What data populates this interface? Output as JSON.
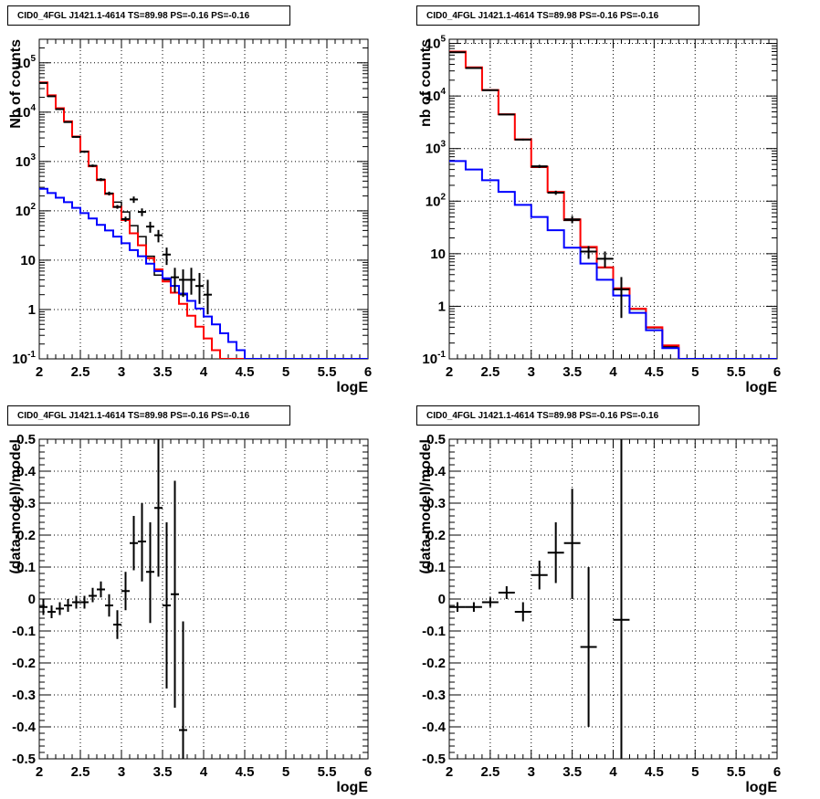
{
  "chart_data": [
    {
      "type": "line",
      "title": "CID0_4FGL J1421.1-4614 TS=89.98 PS=-0.16 PS=-0.16",
      "xlabel": "logE",
      "ylabel": "Nb of counts",
      "xlim": [
        2,
        6
      ],
      "ylim": [
        0.1,
        300000
      ],
      "yscale": "log",
      "grid": true,
      "xticks": [
        "2",
        "2.5",
        "3",
        "3.5",
        "4",
        "4.5",
        "5",
        "5.5",
        "6"
      ],
      "yticks": [
        "10^-1",
        "1",
        "10",
        "10^2",
        "10^3",
        "10^4",
        "10^5"
      ],
      "bin_edges": [
        2.0,
        2.1,
        2.2,
        2.3,
        2.4,
        2.5,
        2.6,
        2.7,
        2.8,
        2.9,
        3.0,
        3.1,
        3.2,
        3.3,
        3.4,
        3.5,
        3.6,
        3.7,
        3.8,
        3.9,
        4.0,
        4.1,
        4.2,
        4.3,
        4.4,
        4.5,
        4.6,
        4.7,
        4.8,
        4.9,
        5.0,
        5.1,
        5.2,
        5.3,
        5.4,
        5.5,
        5.6,
        5.7,
        5.8,
        5.9,
        6.0
      ],
      "series": [
        {
          "color": "#ff0000",
          "values": [
            40000,
            22000,
            12000,
            6500,
            3200,
            1600,
            800,
            420,
            220,
            120,
            65,
            35,
            20,
            11,
            6.5,
            3.7,
            2.2,
            1.3,
            0.75,
            0.45,
            0.26,
            0.15,
            0.1,
            0.1,
            0.1,
            0.1,
            0.1,
            0.1,
            0.1,
            0.1,
            0.1,
            0.1,
            0.1,
            0.1,
            0.1,
            0.1,
            0.1,
            0.1,
            0.1,
            0.1
          ]
        },
        {
          "color": "#0000ff",
          "values": [
            280,
            230,
            185,
            150,
            115,
            90,
            70,
            52,
            40,
            30,
            22,
            16,
            12,
            8.5,
            6.0,
            4.3,
            3.0,
            2.1,
            1.5,
            1.05,
            0.72,
            0.5,
            0.33,
            0.22,
            0.15,
            0.1,
            0.1,
            0.1,
            0.1,
            0.1,
            0.1,
            0.1,
            0.1,
            0.1,
            0.1,
            0.1,
            0.1,
            0.1,
            0.1,
            0.1
          ]
        },
        {
          "color": "#000000",
          "values": [
            39000,
            21000,
            11500,
            6300,
            3150,
            1580,
            820,
            430,
            225,
            150,
            95,
            50,
            30,
            12,
            5,
            4,
            3,
            2
          ]
        }
      ],
      "points": {
        "x": [
          2.05,
          2.15,
          2.25,
          2.35,
          2.45,
          2.55,
          2.65,
          2.75,
          2.85,
          2.95,
          3.05,
          3.15,
          3.25,
          3.35,
          3.45,
          3.55,
          3.65,
          3.75,
          3.85,
          3.95,
          4.05
        ],
        "y": [
          39000,
          21000,
          11500,
          6300,
          3150,
          1580,
          820,
          430,
          225,
          120,
          68,
          170,
          95,
          48,
          32,
          13,
          4.5,
          4,
          4,
          3,
          2
        ],
        "ylow": [
          38600,
          20700,
          11300,
          6150,
          3040,
          1500,
          770,
          400,
          205,
          110,
          60,
          145,
          78,
          36,
          23,
          8,
          2.2,
          1.8,
          2,
          1.3,
          0.8
        ],
        "yhigh": [
          39400,
          21300,
          11700,
          6450,
          3260,
          1660,
          870,
          460,
          245,
          131,
          76,
          195,
          112,
          60,
          41,
          18,
          7,
          6.5,
          7,
          5.5,
          4
        ]
      }
    },
    {
      "type": "line",
      "title": "CID0_4FGL J1421.1-4614 TS=89.98 PS=-0.16 PS=-0.16",
      "xlabel": "logE",
      "ylabel": "nb of counts",
      "xlim": [
        2,
        6
      ],
      "ylim": [
        0.1,
        120000
      ],
      "yscale": "log",
      "grid": true,
      "xticks": [
        "2",
        "2.5",
        "3",
        "3.5",
        "4",
        "4.5",
        "5",
        "5.5",
        "6"
      ],
      "yticks": [
        "10^-1",
        "1",
        "10",
        "10^2",
        "10^3",
        "10^4",
        "10^5"
      ],
      "bin_edges": [
        2.0,
        2.2,
        2.4,
        2.6,
        2.8,
        3.0,
        3.2,
        3.4,
        3.6,
        3.8,
        4.0,
        4.2,
        4.4,
        4.6,
        4.8,
        5.0,
        5.2,
        5.4,
        5.6,
        5.8,
        6.0
      ],
      "series": [
        {
          "color": "#ff0000",
          "values": [
            70000,
            35000,
            13000,
            4500,
            1500,
            450,
            150,
            45,
            13.5,
            5.5,
            2.2,
            0.9,
            0.4,
            0.18,
            0.1,
            0.1,
            0.1,
            0.1,
            0.1,
            0.1
          ]
        },
        {
          "color": "#0000ff",
          "values": [
            580,
            400,
            250,
            150,
            85,
            50,
            28,
            13,
            6.5,
            3.2,
            1.6,
            0.75,
            0.35,
            0.16,
            0.1,
            0.1,
            0.1,
            0.1,
            0.1,
            0.1
          ]
        },
        {
          "color": "#000000",
          "values": [
            68000,
            34000,
            12900,
            4450,
            1480,
            440,
            148,
            43,
            13,
            5.4,
            2.1,
            0.88,
            0.39,
            0.17,
            0.1,
            0.1,
            0.1,
            0.1,
            0.1,
            0.1
          ]
        }
      ],
      "points": {
        "x": [
          2.1,
          2.3,
          2.5,
          2.7,
          2.9,
          3.1,
          3.3,
          3.5,
          3.7,
          3.9,
          4.1
        ],
        "y": [
          68000,
          34000,
          12900,
          4450,
          1480,
          460,
          145,
          45,
          11,
          8,
          2.1
        ],
        "ylow": [
          67400,
          33600,
          12700,
          4330,
          1420,
          430,
          132,
          38,
          8,
          5.5,
          0.6
        ],
        "yhigh": [
          68600,
          34400,
          13100,
          4570,
          1540,
          490,
          158,
          52,
          14,
          11,
          3.6
        ]
      }
    },
    {
      "type": "scatter",
      "title": "CID0_4FGL J1421.1-4614 TS=89.98 PS=-0.16 PS=-0.16",
      "xlabel": "logE",
      "ylabel": "(data-model)/model",
      "xlim": [
        2,
        6
      ],
      "ylim": [
        -0.5,
        0.5
      ],
      "grid": true,
      "xticks": [
        "2",
        "2.5",
        "3",
        "3.5",
        "4",
        "4.5",
        "5",
        "5.5",
        "6"
      ],
      "yticks": [
        "-0.5",
        "-0.4",
        "-0.3",
        "-0.2",
        "-0.1",
        "0",
        "0.1",
        "0.2",
        "0.3",
        "0.4",
        "0.5"
      ],
      "x": [
        2.05,
        2.15,
        2.25,
        2.35,
        2.45,
        2.55,
        2.65,
        2.75,
        2.85,
        2.95,
        3.05,
        3.15,
        3.25,
        3.35,
        3.45,
        3.55,
        3.65,
        3.75
      ],
      "xerr": 0.05,
      "y": [
        -0.025,
        -0.04,
        -0.03,
        -0.02,
        -0.01,
        -0.01,
        0.01,
        0.03,
        -0.02,
        -0.08,
        0.025,
        0.175,
        0.18,
        0.085,
        0.285,
        -0.02,
        0.015,
        -0.41
      ],
      "ylow": [
        -0.05,
        -0.06,
        -0.05,
        -0.04,
        -0.03,
        -0.03,
        -0.01,
        0.005,
        -0.055,
        -0.125,
        -0.035,
        0.09,
        0.055,
        -0.075,
        0.07,
        -0.28,
        -0.34,
        -0.5
      ],
      "yhigh": [
        0.0,
        -0.02,
        -0.01,
        0.0,
        0.01,
        0.01,
        0.035,
        0.055,
        0.015,
        -0.035,
        0.085,
        0.26,
        0.3,
        0.24,
        0.5,
        0.24,
        0.37,
        -0.07
      ]
    },
    {
      "type": "scatter",
      "title": "CID0_4FGL J1421.1-4614 TS=89.98 PS=-0.16 PS=-0.16",
      "xlabel": "logE",
      "ylabel": "(data-model)/model",
      "xlim": [
        2,
        6
      ],
      "ylim": [
        -0.5,
        0.5
      ],
      "grid": true,
      "xticks": [
        "2",
        "2.5",
        "3",
        "3.5",
        "4",
        "4.5",
        "5",
        "5.5",
        "6"
      ],
      "yticks": [
        "-0.5",
        "-0.4",
        "-0.3",
        "-0.2",
        "-0.1",
        "0",
        "0.1",
        "0.2",
        "0.3",
        "0.4",
        "0.5"
      ],
      "x": [
        2.1,
        2.3,
        2.5,
        2.7,
        2.9,
        3.1,
        3.3,
        3.5,
        3.7,
        4.1
      ],
      "xerr": 0.1,
      "y": [
        -0.025,
        -0.025,
        -0.01,
        0.02,
        -0.04,
        0.075,
        0.145,
        0.175,
        -0.15,
        -0.065
      ],
      "ylow": [
        -0.04,
        -0.04,
        -0.025,
        0.0,
        -0.07,
        0.03,
        0.05,
        0.0,
        -0.4,
        -0.5
      ],
      "yhigh": [
        -0.01,
        -0.01,
        0.005,
        0.04,
        -0.01,
        0.12,
        0.24,
        0.345,
        0.1,
        0.5
      ]
    }
  ]
}
